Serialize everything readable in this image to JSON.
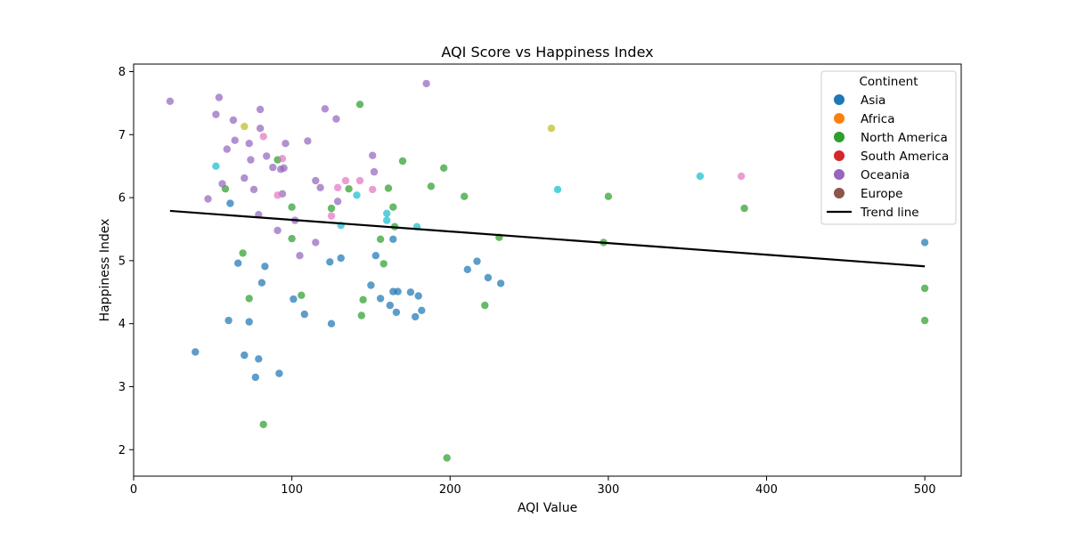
{
  "chart_data": {
    "type": "scatter",
    "title": "AQI Score vs Happiness Index",
    "xlabel": "AQI Value",
    "ylabel": "Happiness Index",
    "xlim": [
      0,
      523
    ],
    "ylim": [
      1.58,
      8.12
    ],
    "xticks": [
      0,
      100,
      200,
      300,
      400,
      500
    ],
    "yticks": [
      2,
      3,
      4,
      5,
      6,
      7,
      8
    ],
    "grid": false,
    "legend": {
      "title": "Continent",
      "position": "top-right",
      "entries": [
        {
          "label": "Asia",
          "color": "#1f77b4",
          "kind": "point"
        },
        {
          "label": "Africa",
          "color": "#ff7f0e",
          "kind": "point"
        },
        {
          "label": "North America",
          "color": "#2ca02c",
          "kind": "point"
        },
        {
          "label": "South America",
          "color": "#d62728",
          "kind": "point"
        },
        {
          "label": "Oceania",
          "color": "#9467bd",
          "kind": "point"
        },
        {
          "label": "Europe",
          "color": "#8c564b",
          "kind": "point"
        },
        {
          "label": "Trend line",
          "color": "#000000",
          "kind": "line"
        }
      ]
    },
    "trend_line": {
      "x": [
        23,
        500
      ],
      "y": [
        5.79,
        4.91
      ],
      "color": "#000000"
    },
    "series": [
      {
        "color": "#1f77b4",
        "points": [
          [
            39,
            3.55
          ],
          [
            60,
            4.05
          ],
          [
            61,
            5.91
          ],
          [
            66,
            4.96
          ],
          [
            70,
            3.5
          ],
          [
            73,
            4.03
          ],
          [
            77,
            3.15
          ],
          [
            79,
            3.44
          ],
          [
            81,
            4.65
          ],
          [
            83,
            4.91
          ],
          [
            92,
            3.21
          ],
          [
            101,
            4.39
          ],
          [
            108,
            4.15
          ],
          [
            124,
            4.98
          ],
          [
            125,
            4.0
          ],
          [
            131,
            5.04
          ],
          [
            150,
            4.61
          ],
          [
            153,
            5.08
          ],
          [
            156,
            4.4
          ],
          [
            162,
            4.29
          ],
          [
            164,
            4.51
          ],
          [
            164,
            5.34
          ],
          [
            166,
            4.18
          ],
          [
            167,
            4.51
          ],
          [
            175,
            4.5
          ],
          [
            178,
            4.11
          ],
          [
            180,
            4.44
          ],
          [
            182,
            4.21
          ],
          [
            211,
            4.86
          ],
          [
            217,
            4.99
          ],
          [
            224,
            4.73
          ],
          [
            232,
            4.64
          ],
          [
            500,
            5.29
          ]
        ]
      },
      {
        "color": "#2ca02c",
        "points": [
          [
            58,
            6.14
          ],
          [
            69,
            5.12
          ],
          [
            73,
            4.4
          ],
          [
            82,
            2.4
          ],
          [
            91,
            6.6
          ],
          [
            100,
            5.85
          ],
          [
            100,
            5.35
          ],
          [
            106,
            4.45
          ],
          [
            125,
            5.83
          ],
          [
            136,
            6.14
          ],
          [
            143,
            7.48
          ],
          [
            144,
            4.13
          ],
          [
            145,
            4.38
          ],
          [
            156,
            5.34
          ],
          [
            158,
            4.95
          ],
          [
            161,
            6.15
          ],
          [
            164,
            5.85
          ],
          [
            165,
            5.54
          ],
          [
            170,
            6.58
          ],
          [
            188,
            6.18
          ],
          [
            196,
            6.47
          ],
          [
            198,
            1.87
          ],
          [
            209,
            6.02
          ],
          [
            222,
            4.29
          ],
          [
            231,
            5.37
          ],
          [
            297,
            5.29
          ],
          [
            300,
            6.02
          ],
          [
            386,
            5.83
          ],
          [
            500,
            4.56
          ],
          [
            500,
            4.05
          ]
        ]
      },
      {
        "color": "#9467bd",
        "points": [
          [
            23,
            7.53
          ],
          [
            47,
            5.98
          ],
          [
            52,
            7.32
          ],
          [
            54,
            7.59
          ],
          [
            56,
            6.22
          ],
          [
            59,
            6.77
          ],
          [
            63,
            7.23
          ],
          [
            64,
            6.91
          ],
          [
            70,
            6.31
          ],
          [
            73,
            6.86
          ],
          [
            74,
            6.6
          ],
          [
            76,
            6.13
          ],
          [
            79,
            5.73
          ],
          [
            80,
            7.4
          ],
          [
            80,
            7.1
          ],
          [
            84,
            6.66
          ],
          [
            88,
            6.48
          ],
          [
            91,
            5.48
          ],
          [
            93,
            6.45
          ],
          [
            94,
            6.06
          ],
          [
            95,
            6.47
          ],
          [
            96,
            6.86
          ],
          [
            102,
            5.64
          ],
          [
            105,
            5.08
          ],
          [
            110,
            6.9
          ],
          [
            115,
            6.27
          ],
          [
            115,
            5.29
          ],
          [
            118,
            6.16
          ],
          [
            121,
            7.41
          ],
          [
            128,
            7.25
          ],
          [
            129,
            5.94
          ],
          [
            151,
            6.67
          ],
          [
            152,
            6.41
          ],
          [
            185,
            7.81
          ]
        ]
      },
      {
        "color": "#e377c2",
        "points": [
          [
            82,
            6.97
          ],
          [
            91,
            6.04
          ],
          [
            94,
            6.62
          ],
          [
            125,
            5.71
          ],
          [
            129,
            6.16
          ],
          [
            134,
            6.27
          ],
          [
            143,
            6.27
          ],
          [
            151,
            6.13
          ],
          [
            384,
            6.34
          ]
        ]
      },
      {
        "color": "#bcbd22",
        "points": [
          [
            70,
            7.13
          ],
          [
            264,
            7.1
          ]
        ]
      },
      {
        "color": "#17becf",
        "points": [
          [
            52,
            6.5
          ],
          [
            131,
            5.56
          ],
          [
            141,
            6.04
          ],
          [
            160,
            5.75
          ],
          [
            160,
            5.64
          ],
          [
            179,
            5.54
          ],
          [
            268,
            6.13
          ],
          [
            358,
            6.34
          ]
        ]
      }
    ]
  }
}
